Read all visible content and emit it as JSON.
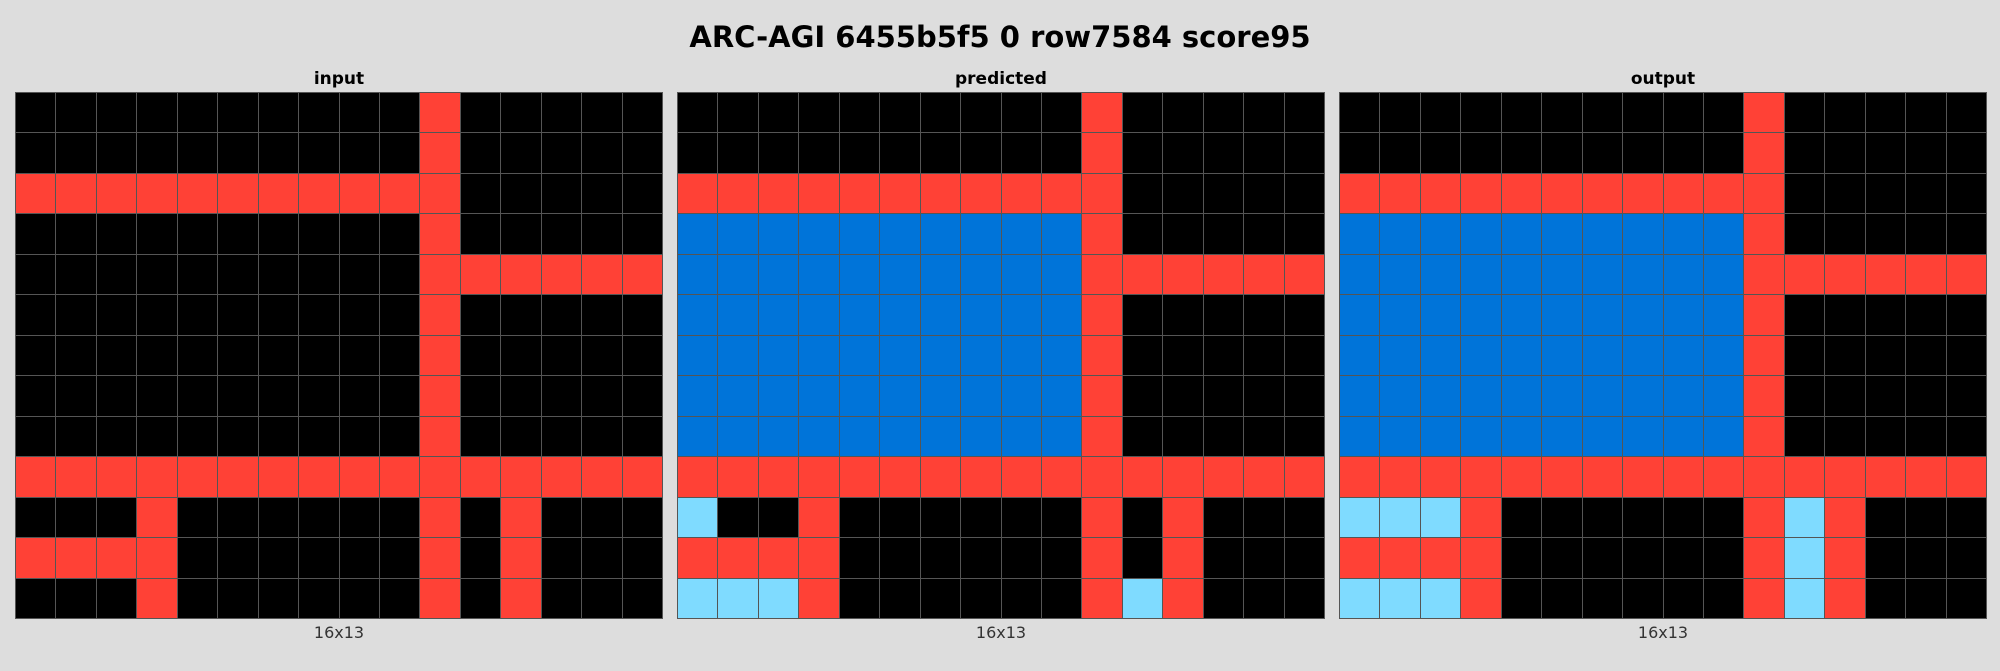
{
  "title": "ARC-AGI 6455b5f5 0 row7584 score95",
  "palette": {
    "0": "#000000",
    "1": "#0074d9",
    "2": "#ff4136",
    "8": "#7fdbff"
  },
  "panels": [
    {
      "label": "input",
      "dims": "16x13",
      "grid": [
        [
          0,
          0,
          0,
          0,
          0,
          0,
          0,
          0,
          0,
          0,
          2,
          0,
          0,
          0,
          0,
          0
        ],
        [
          0,
          0,
          0,
          0,
          0,
          0,
          0,
          0,
          0,
          0,
          2,
          0,
          0,
          0,
          0,
          0
        ],
        [
          2,
          2,
          2,
          2,
          2,
          2,
          2,
          2,
          2,
          2,
          2,
          0,
          0,
          0,
          0,
          0
        ],
        [
          0,
          0,
          0,
          0,
          0,
          0,
          0,
          0,
          0,
          0,
          2,
          0,
          0,
          0,
          0,
          0
        ],
        [
          0,
          0,
          0,
          0,
          0,
          0,
          0,
          0,
          0,
          0,
          2,
          2,
          2,
          2,
          2,
          2
        ],
        [
          0,
          0,
          0,
          0,
          0,
          0,
          0,
          0,
          0,
          0,
          2,
          0,
          0,
          0,
          0,
          0
        ],
        [
          0,
          0,
          0,
          0,
          0,
          0,
          0,
          0,
          0,
          0,
          2,
          0,
          0,
          0,
          0,
          0
        ],
        [
          0,
          0,
          0,
          0,
          0,
          0,
          0,
          0,
          0,
          0,
          2,
          0,
          0,
          0,
          0,
          0
        ],
        [
          0,
          0,
          0,
          0,
          0,
          0,
          0,
          0,
          0,
          0,
          2,
          0,
          0,
          0,
          0,
          0
        ],
        [
          2,
          2,
          2,
          2,
          2,
          2,
          2,
          2,
          2,
          2,
          2,
          2,
          2,
          2,
          2,
          2
        ],
        [
          0,
          0,
          0,
          2,
          0,
          0,
          0,
          0,
          0,
          0,
          2,
          0,
          2,
          0,
          0,
          0
        ],
        [
          2,
          2,
          2,
          2,
          0,
          0,
          0,
          0,
          0,
          0,
          2,
          0,
          2,
          0,
          0,
          0
        ],
        [
          0,
          0,
          0,
          2,
          0,
          0,
          0,
          0,
          0,
          0,
          2,
          0,
          2,
          0,
          0,
          0
        ]
      ]
    },
    {
      "label": "predicted",
      "dims": "16x13",
      "grid": [
        [
          0,
          0,
          0,
          0,
          0,
          0,
          0,
          0,
          0,
          0,
          2,
          0,
          0,
          0,
          0,
          0
        ],
        [
          0,
          0,
          0,
          0,
          0,
          0,
          0,
          0,
          0,
          0,
          2,
          0,
          0,
          0,
          0,
          0
        ],
        [
          2,
          2,
          2,
          2,
          2,
          2,
          2,
          2,
          2,
          2,
          2,
          0,
          0,
          0,
          0,
          0
        ],
        [
          1,
          1,
          1,
          1,
          1,
          1,
          1,
          1,
          1,
          1,
          2,
          0,
          0,
          0,
          0,
          0
        ],
        [
          1,
          1,
          1,
          1,
          1,
          1,
          1,
          1,
          1,
          1,
          2,
          2,
          2,
          2,
          2,
          2
        ],
        [
          1,
          1,
          1,
          1,
          1,
          1,
          1,
          1,
          1,
          1,
          2,
          0,
          0,
          0,
          0,
          0
        ],
        [
          1,
          1,
          1,
          1,
          1,
          1,
          1,
          1,
          1,
          1,
          2,
          0,
          0,
          0,
          0,
          0
        ],
        [
          1,
          1,
          1,
          1,
          1,
          1,
          1,
          1,
          1,
          1,
          2,
          0,
          0,
          0,
          0,
          0
        ],
        [
          1,
          1,
          1,
          1,
          1,
          1,
          1,
          1,
          1,
          1,
          2,
          0,
          0,
          0,
          0,
          0
        ],
        [
          2,
          2,
          2,
          2,
          2,
          2,
          2,
          2,
          2,
          2,
          2,
          2,
          2,
          2,
          2,
          2
        ],
        [
          8,
          0,
          0,
          2,
          0,
          0,
          0,
          0,
          0,
          0,
          2,
          0,
          2,
          0,
          0,
          0
        ],
        [
          2,
          2,
          2,
          2,
          0,
          0,
          0,
          0,
          0,
          0,
          2,
          0,
          2,
          0,
          0,
          0
        ],
        [
          8,
          8,
          8,
          2,
          0,
          0,
          0,
          0,
          0,
          0,
          2,
          8,
          2,
          0,
          0,
          0
        ]
      ]
    },
    {
      "label": "output",
      "dims": "16x13",
      "grid": [
        [
          0,
          0,
          0,
          0,
          0,
          0,
          0,
          0,
          0,
          0,
          2,
          0,
          0,
          0,
          0,
          0
        ],
        [
          0,
          0,
          0,
          0,
          0,
          0,
          0,
          0,
          0,
          0,
          2,
          0,
          0,
          0,
          0,
          0
        ],
        [
          2,
          2,
          2,
          2,
          2,
          2,
          2,
          2,
          2,
          2,
          2,
          0,
          0,
          0,
          0,
          0
        ],
        [
          1,
          1,
          1,
          1,
          1,
          1,
          1,
          1,
          1,
          1,
          2,
          0,
          0,
          0,
          0,
          0
        ],
        [
          1,
          1,
          1,
          1,
          1,
          1,
          1,
          1,
          1,
          1,
          2,
          2,
          2,
          2,
          2,
          2
        ],
        [
          1,
          1,
          1,
          1,
          1,
          1,
          1,
          1,
          1,
          1,
          2,
          0,
          0,
          0,
          0,
          0
        ],
        [
          1,
          1,
          1,
          1,
          1,
          1,
          1,
          1,
          1,
          1,
          2,
          0,
          0,
          0,
          0,
          0
        ],
        [
          1,
          1,
          1,
          1,
          1,
          1,
          1,
          1,
          1,
          1,
          2,
          0,
          0,
          0,
          0,
          0
        ],
        [
          1,
          1,
          1,
          1,
          1,
          1,
          1,
          1,
          1,
          1,
          2,
          0,
          0,
          0,
          0,
          0
        ],
        [
          2,
          2,
          2,
          2,
          2,
          2,
          2,
          2,
          2,
          2,
          2,
          2,
          2,
          2,
          2,
          2
        ],
        [
          8,
          8,
          8,
          2,
          0,
          0,
          0,
          0,
          0,
          0,
          2,
          8,
          2,
          0,
          0,
          0
        ],
        [
          2,
          2,
          2,
          2,
          0,
          0,
          0,
          0,
          0,
          0,
          2,
          8,
          2,
          0,
          0,
          0
        ],
        [
          8,
          8,
          8,
          2,
          0,
          0,
          0,
          0,
          0,
          0,
          2,
          8,
          2,
          0,
          0,
          0
        ]
      ]
    }
  ]
}
